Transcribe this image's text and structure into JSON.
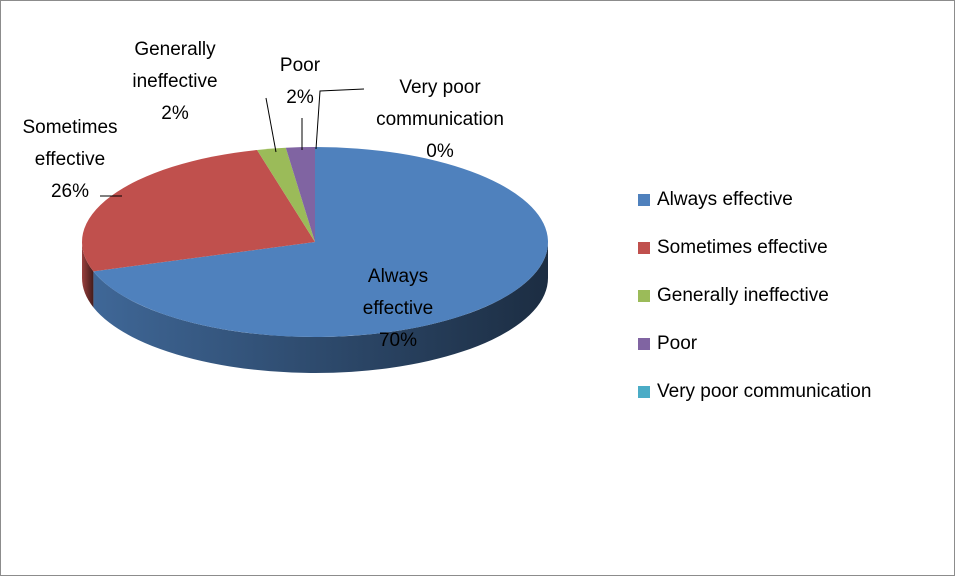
{
  "chart_data": {
    "type": "pie",
    "categories": [
      "Always effective",
      "Sometimes effective",
      "Generally ineffective",
      "Poor",
      "Very poor communication"
    ],
    "values": [
      70,
      26,
      2,
      2,
      0
    ],
    "value_labels": [
      "70%",
      "26%",
      "2%",
      "2%",
      "0%"
    ],
    "colors": [
      "#4f81bd",
      "#c0504d",
      "#9bbb59",
      "#8064a2",
      "#4bacc6"
    ],
    "legend": "right"
  }
}
